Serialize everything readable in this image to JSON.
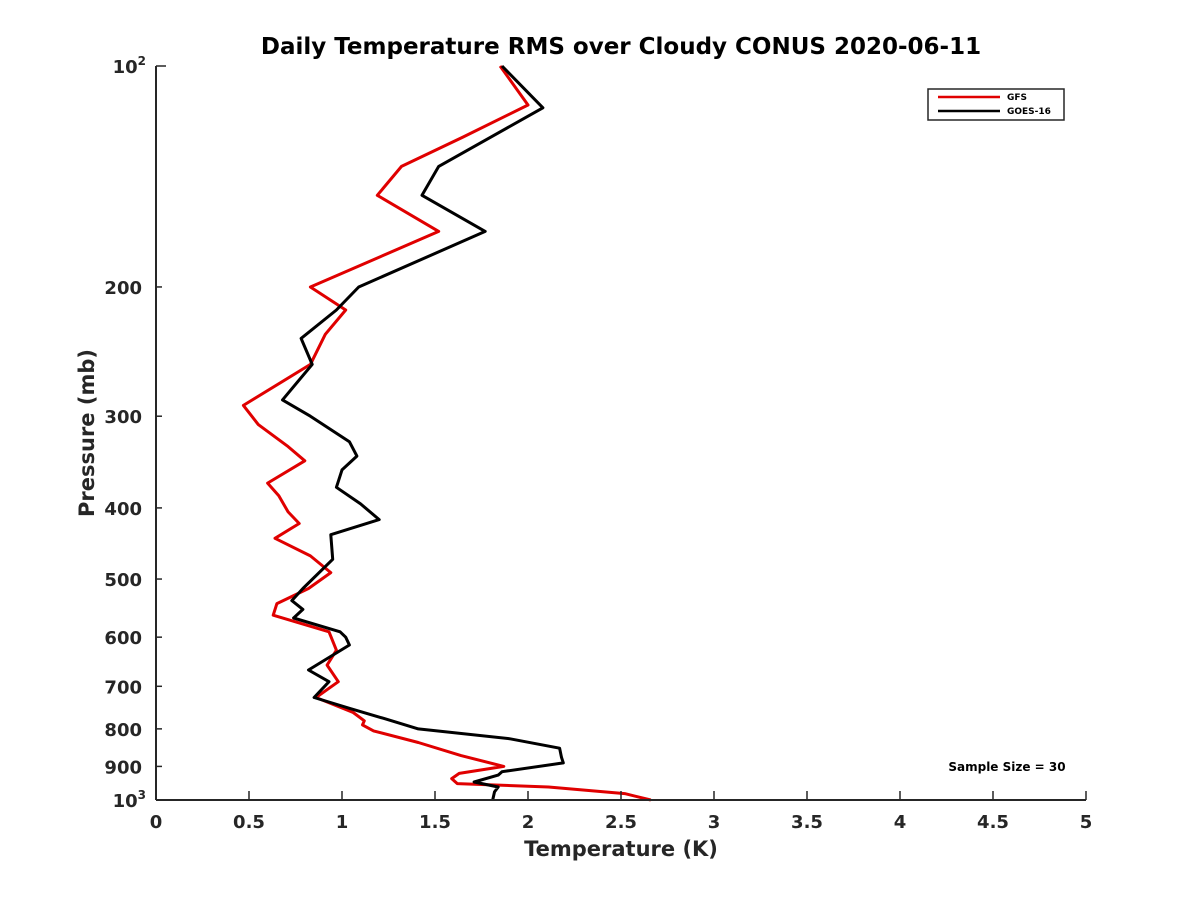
{
  "chart_data": {
    "type": "line",
    "title": "Daily Temperature RMS over Cloudy CONUS 2020-06-11",
    "xlabel": "Temperature (K)",
    "ylabel": "Pressure (mb)",
    "xlim": [
      0,
      5
    ],
    "ylim": [
      100,
      1000
    ],
    "y_scale": "log",
    "y_reversed": true,
    "grid": false,
    "legend_position": "top-right",
    "x_ticks": [
      0,
      0.5,
      1,
      1.5,
      2,
      2.5,
      3,
      3.5,
      4,
      4.5,
      5
    ],
    "x_tick_labels": [
      "0",
      "0.5",
      "1",
      "1.5",
      "2",
      "2.5",
      "3",
      "3.5",
      "4",
      "4.5",
      "5"
    ],
    "y_ticks_major": [
      {
        "value": 100,
        "base": "10",
        "exp": "2"
      },
      {
        "value": 1000,
        "base": "10",
        "exp": "3"
      }
    ],
    "y_ticks_minor": [
      {
        "value": 200,
        "label": "200"
      },
      {
        "value": 300,
        "label": "300"
      },
      {
        "value": 400,
        "label": "400"
      },
      {
        "value": 500,
        "label": "500"
      },
      {
        "value": 600,
        "label": "600"
      },
      {
        "value": 700,
        "label": "700"
      },
      {
        "value": 800,
        "label": "800"
      },
      {
        "value": 900,
        "label": "900"
      }
    ],
    "annotation": "Sample Size = 30",
    "series": [
      {
        "name": "GFS",
        "color": "#e00000",
        "points": [
          [
            1.85,
            100
          ],
          [
            2.0,
            113
          ],
          [
            1.65,
            125
          ],
          [
            1.32,
            137
          ],
          [
            1.19,
            150
          ],
          [
            1.52,
            168
          ],
          [
            0.83,
            200
          ],
          [
            1.02,
            215
          ],
          [
            0.91,
            232
          ],
          [
            0.83,
            255
          ],
          [
            0.47,
            290
          ],
          [
            0.55,
            308
          ],
          [
            0.71,
            330
          ],
          [
            0.8,
            345
          ],
          [
            0.6,
            370
          ],
          [
            0.66,
            385
          ],
          [
            0.71,
            405
          ],
          [
            0.77,
            420
          ],
          [
            0.64,
            440
          ],
          [
            0.83,
            465
          ],
          [
            0.94,
            490
          ],
          [
            0.82,
            515
          ],
          [
            0.65,
            540
          ],
          [
            0.63,
            560
          ],
          [
            0.93,
            590
          ],
          [
            0.97,
            625
          ],
          [
            0.92,
            655
          ],
          [
            0.98,
            690
          ],
          [
            0.86,
            725
          ],
          [
            1.06,
            760
          ],
          [
            1.12,
            780
          ],
          [
            1.11,
            790
          ],
          [
            1.17,
            805
          ],
          [
            1.41,
            835
          ],
          [
            1.64,
            870
          ],
          [
            1.87,
            900
          ],
          [
            1.63,
            920
          ],
          [
            1.59,
            935
          ],
          [
            1.62,
            950
          ],
          [
            2.11,
            960
          ],
          [
            2.52,
            980
          ],
          [
            2.66,
            1000
          ]
        ]
      },
      {
        "name": "GOES-16",
        "color": "#000000",
        "points": [
          [
            1.86,
            100
          ],
          [
            2.08,
            114
          ],
          [
            1.52,
            137
          ],
          [
            1.43,
            150
          ],
          [
            1.77,
            168
          ],
          [
            1.09,
            200
          ],
          [
            0.97,
            215
          ],
          [
            0.78,
            235
          ],
          [
            0.84,
            255
          ],
          [
            0.68,
            285
          ],
          [
            0.83,
            300
          ],
          [
            1.04,
            325
          ],
          [
            1.08,
            340
          ],
          [
            1.0,
            355
          ],
          [
            0.97,
            375
          ],
          [
            1.1,
            395
          ],
          [
            1.2,
            415
          ],
          [
            0.94,
            435
          ],
          [
            0.95,
            470
          ],
          [
            0.79,
            515
          ],
          [
            0.73,
            535
          ],
          [
            0.79,
            550
          ],
          [
            0.74,
            565
          ],
          [
            0.99,
            590
          ],
          [
            1.02,
            600
          ],
          [
            1.04,
            615
          ],
          [
            0.82,
            665
          ],
          [
            0.93,
            690
          ],
          [
            0.85,
            725
          ],
          [
            1.04,
            750
          ],
          [
            1.23,
            775
          ],
          [
            1.41,
            800
          ],
          [
            1.9,
            825
          ],
          [
            2.17,
            850
          ],
          [
            2.18,
            875
          ],
          [
            2.19,
            890
          ],
          [
            1.86,
            915
          ],
          [
            1.84,
            925
          ],
          [
            1.71,
            945
          ],
          [
            1.84,
            960
          ],
          [
            1.82,
            975
          ],
          [
            1.81,
            1000
          ]
        ]
      }
    ]
  }
}
